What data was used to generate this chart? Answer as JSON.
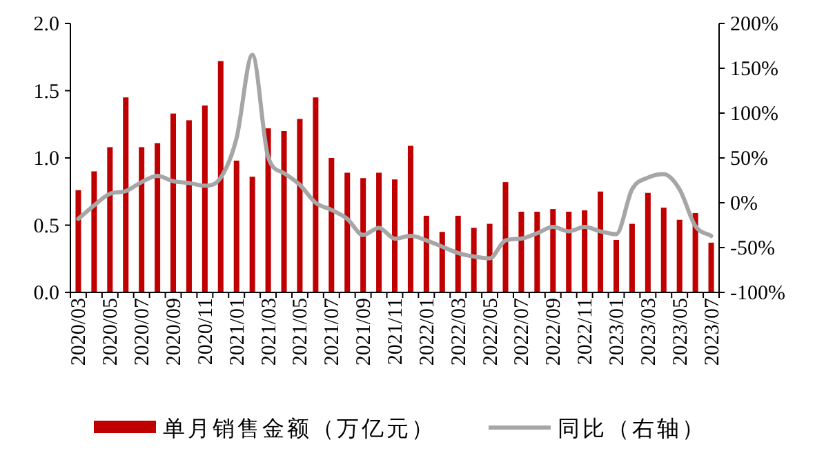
{
  "chart_data": {
    "type": "bar",
    "categories": [
      "2020/03",
      null,
      "2020/05",
      null,
      "2020/07",
      null,
      "2020/09",
      null,
      "2020/11",
      null,
      "2021/01",
      null,
      "2021/03",
      null,
      "2021/05",
      null,
      "2021/07",
      null,
      "2021/09",
      null,
      "2021/11",
      null,
      "2022/01",
      null,
      "2022/03",
      null,
      "2022/05",
      null,
      "2022/07",
      null,
      "2022/09",
      null,
      "2022/11",
      null,
      "2023/01",
      null,
      "2023/03",
      null,
      "2023/05",
      null,
      "2023/07"
    ],
    "series": [
      {
        "name": "单月销售金额（万亿元）",
        "color": "#c00000",
        "values": [
          0.76,
          0.9,
          1.08,
          1.45,
          1.08,
          1.11,
          1.33,
          1.28,
          1.39,
          1.72,
          0.98,
          0.86,
          1.22,
          1.2,
          1.29,
          1.45,
          1.0,
          0.89,
          0.85,
          0.89,
          0.84,
          1.09,
          0.57,
          0.45,
          0.57,
          0.48,
          0.51,
          0.82,
          0.6,
          0.6,
          0.62,
          0.6,
          0.61,
          0.75,
          0.39,
          0.51,
          0.74,
          0.63,
          0.54,
          0.59,
          0.37
        ]
      },
      {
        "name": "同比（右轴）",
        "type": "line",
        "axis": "y2",
        "color": "#a6a6a6",
        "values": [
          -18,
          -3,
          10,
          13,
          23,
          30,
          24,
          22,
          19,
          28,
          72,
          165,
          51,
          33,
          20,
          0,
          -8,
          -18,
          -36,
          -28,
          -40,
          -37,
          -42,
          -49,
          -56,
          -60,
          -62,
          -42,
          -40,
          -34,
          -27,
          -32,
          -27,
          -32,
          -35,
          15,
          28,
          32,
          15,
          -26,
          -37
        ]
      }
    ],
    "ylim": [
      0,
      2
    ],
    "yticks": [
      {
        "value": 0,
        "label": "0.0"
      },
      {
        "value": 0.5,
        "label": "0.5"
      },
      {
        "value": 1,
        "label": "1.0"
      },
      {
        "value": 1.5,
        "label": "1.5"
      },
      {
        "value": 2,
        "label": "2.0"
      }
    ],
    "y2lim": [
      -100,
      200
    ],
    "y2ticks": [
      {
        "value": -100,
        "label": "-100%"
      },
      {
        "value": -50,
        "label": "-50%"
      },
      {
        "value": 0,
        "label": "0%"
      },
      {
        "value": 50,
        "label": "50%"
      },
      {
        "value": 100,
        "label": "100%"
      },
      {
        "value": 150,
        "label": "150%"
      },
      {
        "value": 200,
        "label": "200%"
      }
    ],
    "legend": "bottom",
    "grid": false,
    "marker": "none",
    "line_style": "solid"
  }
}
